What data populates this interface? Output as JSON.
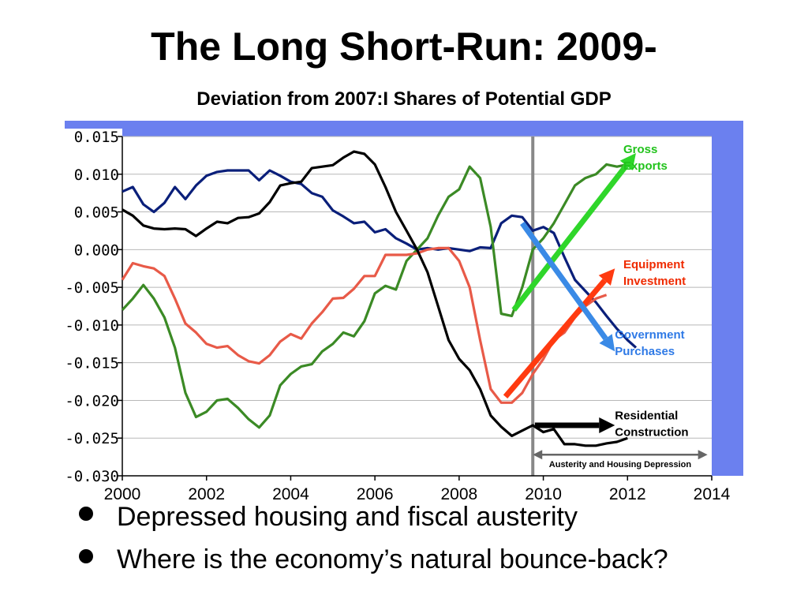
{
  "slide": {
    "title": "The Long Short-Run: 2009-",
    "bullets": [
      "Depressed housing and fiscal austerity",
      "Where is the economy’s natural bounce-back?"
    ]
  },
  "chart_data": {
    "type": "line",
    "title": "Deviation from 2007:I Shares of Potential GDP",
    "xlim": [
      2000,
      2014
    ],
    "ylim": [
      -0.03,
      0.015
    ],
    "x_ticks": [
      "2000",
      "2002",
      "2004",
      "2006",
      "2008",
      "2010",
      "2012",
      "2014"
    ],
    "y_ticks": [
      "0.015",
      "0.010",
      "0.005",
      "0.000",
      "-0.005",
      "-0.010",
      "-0.015",
      "-0.020",
      "-0.025",
      "-0.030"
    ],
    "x_tick_values": [
      2000,
      2002,
      2004,
      2006,
      2008,
      2010,
      2012,
      2014
    ],
    "y_tick_values": [
      0.015,
      0.01,
      0.005,
      0.0,
      -0.005,
      -0.01,
      -0.015,
      -0.02,
      -0.025,
      -0.03
    ],
    "grid": true,
    "vertical_marker_x": 2009.75,
    "series": [
      {
        "key": "government",
        "color": "#0a1f7a",
        "points": [
          [
            2000,
            0.0077
          ],
          [
            2000.25,
            0.0083
          ],
          [
            2000.5,
            0.006
          ],
          [
            2000.75,
            0.005
          ],
          [
            2001,
            0.0062
          ],
          [
            2001.25,
            0.0083
          ],
          [
            2001.5,
            0.0067
          ],
          [
            2001.75,
            0.0085
          ],
          [
            2002,
            0.0098
          ],
          [
            2002.25,
            0.0103
          ],
          [
            2002.5,
            0.0105
          ],
          [
            2002.75,
            0.0105
          ],
          [
            2003,
            0.0105
          ],
          [
            2003.25,
            0.0092
          ],
          [
            2003.5,
            0.0105
          ],
          [
            2003.75,
            0.0098
          ],
          [
            2004,
            0.009
          ],
          [
            2004.25,
            0.0087
          ],
          [
            2004.5,
            0.0075
          ],
          [
            2004.75,
            0.007
          ],
          [
            2005,
            0.0052
          ],
          [
            2005.25,
            0.0044
          ],
          [
            2005.5,
            0.0035
          ],
          [
            2005.75,
            0.0037
          ],
          [
            2006,
            0.0023
          ],
          [
            2006.25,
            0.0027
          ],
          [
            2006.5,
            0.0015
          ],
          [
            2006.75,
            0.0008
          ],
          [
            2007,
            0.0
          ],
          [
            2007.25,
            0.0002
          ],
          [
            2007.5,
            0.0
          ],
          [
            2007.75,
            0.0002
          ],
          [
            2008,
            0.0
          ],
          [
            2008.25,
            -0.0002
          ],
          [
            2008.5,
            0.0003
          ],
          [
            2008.75,
            0.0002
          ],
          [
            2009,
            0.0035
          ],
          [
            2009.25,
            0.0045
          ],
          [
            2009.5,
            0.0043
          ],
          [
            2009.75,
            0.0025
          ],
          [
            2010,
            0.003
          ],
          [
            2010.25,
            0.0022
          ],
          [
            2010.5,
            -0.001
          ],
          [
            2010.75,
            -0.004
          ],
          [
            2011,
            -0.0055
          ],
          [
            2011.25,
            -0.007
          ],
          [
            2011.5,
            -0.0088
          ],
          [
            2011.75,
            -0.0105
          ],
          [
            2012,
            -0.012
          ],
          [
            2012.2,
            -0.013
          ]
        ]
      },
      {
        "key": "exports",
        "color": "#3b8a25",
        "points": [
          [
            2000,
            -0.008
          ],
          [
            2000.25,
            -0.0065
          ],
          [
            2000.5,
            -0.0047
          ],
          [
            2000.75,
            -0.0065
          ],
          [
            2001,
            -0.009
          ],
          [
            2001.25,
            -0.013
          ],
          [
            2001.5,
            -0.019
          ],
          [
            2001.75,
            -0.0222
          ],
          [
            2002,
            -0.0215
          ],
          [
            2002.25,
            -0.02
          ],
          [
            2002.5,
            -0.0198
          ],
          [
            2002.75,
            -0.021
          ],
          [
            2003,
            -0.0225
          ],
          [
            2003.25,
            -0.0236
          ],
          [
            2003.5,
            -0.022
          ],
          [
            2003.75,
            -0.018
          ],
          [
            2004,
            -0.0165
          ],
          [
            2004.25,
            -0.0155
          ],
          [
            2004.5,
            -0.0152
          ],
          [
            2004.75,
            -0.0135
          ],
          [
            2005,
            -0.0125
          ],
          [
            2005.25,
            -0.011
          ],
          [
            2005.5,
            -0.0115
          ],
          [
            2005.75,
            -0.0095
          ],
          [
            2006,
            -0.0058
          ],
          [
            2006.25,
            -0.0048
          ],
          [
            2006.5,
            -0.0053
          ],
          [
            2006.75,
            -0.0015
          ],
          [
            2007,
            0.0
          ],
          [
            2007.25,
            0.0015
          ],
          [
            2007.5,
            0.0045
          ],
          [
            2007.75,
            0.007
          ],
          [
            2008,
            0.008
          ],
          [
            2008.25,
            0.011
          ],
          [
            2008.5,
            0.0095
          ],
          [
            2008.75,
            0.003
          ],
          [
            2009,
            -0.0085
          ],
          [
            2009.25,
            -0.0088
          ],
          [
            2009.5,
            -0.005
          ],
          [
            2009.75,
            0.0
          ],
          [
            2010,
            0.0015
          ],
          [
            2010.25,
            0.0035
          ],
          [
            2010.5,
            0.006
          ],
          [
            2010.75,
            0.0085
          ],
          [
            2011,
            0.0095
          ],
          [
            2011.25,
            0.01
          ],
          [
            2011.5,
            0.0113
          ],
          [
            2011.75,
            0.011
          ],
          [
            2012,
            0.0113
          ]
        ]
      },
      {
        "key": "equipment",
        "color": "#e85a48",
        "points": [
          [
            2000,
            -0.004
          ],
          [
            2000.25,
            -0.0018
          ],
          [
            2000.5,
            -0.0022
          ],
          [
            2000.75,
            -0.0025
          ],
          [
            2001,
            -0.0035
          ],
          [
            2001.25,
            -0.0065
          ],
          [
            2001.5,
            -0.0098
          ],
          [
            2001.75,
            -0.011
          ],
          [
            2002,
            -0.0125
          ],
          [
            2002.25,
            -0.013
          ],
          [
            2002.5,
            -0.0128
          ],
          [
            2002.75,
            -0.014
          ],
          [
            2003,
            -0.0148
          ],
          [
            2003.25,
            -0.0151
          ],
          [
            2003.5,
            -0.014
          ],
          [
            2003.75,
            -0.0122
          ],
          [
            2004,
            -0.0112
          ],
          [
            2004.25,
            -0.0118
          ],
          [
            2004.5,
            -0.0098
          ],
          [
            2004.75,
            -0.0083
          ],
          [
            2005,
            -0.0065
          ],
          [
            2005.25,
            -0.0064
          ],
          [
            2005.5,
            -0.0052
          ],
          [
            2005.75,
            -0.0035
          ],
          [
            2006,
            -0.0035
          ],
          [
            2006.25,
            -0.0007
          ],
          [
            2006.5,
            -0.0007
          ],
          [
            2006.75,
            -0.0007
          ],
          [
            2007,
            -0.0005
          ],
          [
            2007.25,
            0.0
          ],
          [
            2007.5,
            0.0002
          ],
          [
            2007.75,
            0.0002
          ],
          [
            2008,
            -0.0015
          ],
          [
            2008.25,
            -0.005
          ],
          [
            2008.5,
            -0.012
          ],
          [
            2008.75,
            -0.0185
          ],
          [
            2009,
            -0.0203
          ],
          [
            2009.25,
            -0.0203
          ],
          [
            2009.5,
            -0.019
          ],
          [
            2009.75,
            -0.0165
          ],
          [
            2010,
            -0.0145
          ],
          [
            2010.25,
            -0.012
          ],
          [
            2010.5,
            -0.011
          ],
          [
            2010.75,
            -0.009
          ],
          [
            2011,
            -0.0075
          ],
          [
            2011.25,
            -0.0065
          ],
          [
            2011.5,
            -0.006
          ]
        ]
      },
      {
        "key": "residential",
        "color": "#000000",
        "points": [
          [
            2000,
            0.0053
          ],
          [
            2000.25,
            0.0045
          ],
          [
            2000.5,
            0.0032
          ],
          [
            2000.75,
            0.0028
          ],
          [
            2001,
            0.0027
          ],
          [
            2001.25,
            0.0028
          ],
          [
            2001.5,
            0.0027
          ],
          [
            2001.75,
            0.0018
          ],
          [
            2002,
            0.0028
          ],
          [
            2002.25,
            0.0037
          ],
          [
            2002.5,
            0.0035
          ],
          [
            2002.75,
            0.0042
          ],
          [
            2003,
            0.0043
          ],
          [
            2003.25,
            0.0048
          ],
          [
            2003.5,
            0.0063
          ],
          [
            2003.75,
            0.0085
          ],
          [
            2004,
            0.0088
          ],
          [
            2004.25,
            0.009
          ],
          [
            2004.5,
            0.0108
          ],
          [
            2004.75,
            0.011
          ],
          [
            2005,
            0.0112
          ],
          [
            2005.25,
            0.0122
          ],
          [
            2005.5,
            0.013
          ],
          [
            2005.75,
            0.0127
          ],
          [
            2006,
            0.0113
          ],
          [
            2006.25,
            0.0083
          ],
          [
            2006.5,
            0.005
          ],
          [
            2006.75,
            0.0025
          ],
          [
            2007,
            0.0
          ],
          [
            2007.25,
            -0.003
          ],
          [
            2007.5,
            -0.0075
          ],
          [
            2007.75,
            -0.012
          ],
          [
            2008,
            -0.0145
          ],
          [
            2008.25,
            -0.016
          ],
          [
            2008.5,
            -0.0185
          ],
          [
            2008.75,
            -0.022
          ],
          [
            2009,
            -0.0235
          ],
          [
            2009.25,
            -0.0247
          ],
          [
            2009.5,
            -0.024
          ],
          [
            2009.75,
            -0.0233
          ],
          [
            2010,
            -0.0242
          ],
          [
            2010.25,
            -0.0238
          ],
          [
            2010.5,
            -0.0258
          ],
          [
            2010.75,
            -0.0258
          ],
          [
            2011,
            -0.026
          ],
          [
            2011.25,
            -0.026
          ],
          [
            2011.5,
            -0.0257
          ],
          [
            2011.75,
            -0.0255
          ],
          [
            2012,
            -0.025
          ]
        ]
      }
    ],
    "arrows": [
      {
        "key": "exports",
        "color": "#2fd62a",
        "from": [
          2009.3,
          -0.008
        ],
        "to": [
          2012.2,
          0.0128
        ]
      },
      {
        "key": "equipment",
        "color": "#ff3a10",
        "from": [
          2009.1,
          -0.0195
        ],
        "to": [
          2011.7,
          -0.0025
        ]
      },
      {
        "key": "government",
        "color": "#3a8ae6",
        "from": [
          2009.5,
          0.0035
        ],
        "to": [
          2011.7,
          -0.0135
        ]
      },
      {
        "key": "residential",
        "color": "#000000",
        "from": [
          2009.8,
          -0.0233
        ],
        "to": [
          2011.7,
          -0.0233
        ]
      }
    ],
    "labels": [
      {
        "key": "exports",
        "lines": [
          "Gross",
          "Exports"
        ],
        "color": "#22c31c",
        "at": [
          2011.9,
          0.0128
        ]
      },
      {
        "key": "equipment",
        "lines": [
          "Equipment",
          "Investment"
        ],
        "color": "#ef2a00",
        "at": [
          2011.9,
          -0.0025
        ]
      },
      {
        "key": "government",
        "lines": [
          "Government",
          "Purchases"
        ],
        "color": "#2f7ae6",
        "at": [
          2011.7,
          -0.0118
        ]
      },
      {
        "key": "residential",
        "lines": [
          "Residential",
          "Construction"
        ],
        "color": "#000000",
        "at": [
          2011.7,
          -0.0225
        ]
      }
    ],
    "span_annotation": {
      "text": "Austerity and Housing Depression",
      "from": 2009.75,
      "to": 2013.9,
      "y": -0.0272
    }
  }
}
